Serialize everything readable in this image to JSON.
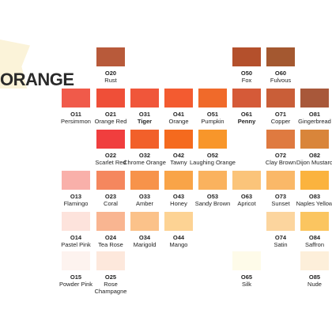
{
  "title": "ORANGE",
  "swatches": [
    {
      "code": "O20",
      "name": "Rust",
      "color": "#b85a3a",
      "col": 1,
      "row": 0
    },
    {
      "code": "O50",
      "name": "Fox",
      "color": "#b4502c",
      "col": 5,
      "row": 0
    },
    {
      "code": "O60",
      "name": "Fulvous",
      "color": "#a45830",
      "col": 6,
      "row": 0
    },
    {
      "code": "O11",
      "name": "Persimmon",
      "color": "#f05a4a",
      "col": 0,
      "row": 1
    },
    {
      "code": "O21",
      "name": "Orange Red",
      "color": "#ef4f38",
      "col": 1,
      "row": 1
    },
    {
      "code": "O31",
      "name": "Tiger",
      "color": "#f0563a",
      "col": 2,
      "row": 1,
      "bold": true
    },
    {
      "code": "O41",
      "name": "Orange",
      "color": "#f35b30",
      "col": 3,
      "row": 1
    },
    {
      "code": "O51",
      "name": "Pumpkin",
      "color": "#f06a2a",
      "col": 4,
      "row": 1
    },
    {
      "code": "O61",
      "name": "Penny",
      "color": "#d55a38",
      "col": 5,
      "row": 1,
      "bold": true
    },
    {
      "code": "O71",
      "name": "Copper",
      "color": "#c95e38",
      "col": 6,
      "row": 1
    },
    {
      "code": "O81",
      "name": "Gingerbread",
      "color": "#a8583a",
      "col": 7,
      "row": 1
    },
    {
      "code": "O22",
      "name": "Scarlet Red",
      "color": "#f03e3e",
      "col": 1,
      "row": 2
    },
    {
      "code": "O32",
      "name": "Chrome Orange",
      "color": "#f2602a",
      "col": 2,
      "row": 2
    },
    {
      "code": "O42",
      "name": "Tawny",
      "color": "#f56a1e",
      "col": 3,
      "row": 2
    },
    {
      "code": "O52",
      "name": "Laughing Orange",
      "color": "#f8962a",
      "col": 4,
      "row": 2
    },
    {
      "code": "O72",
      "name": "Clay Brown",
      "color": "#df7a40",
      "col": 6,
      "row": 2
    },
    {
      "code": "O82",
      "name": "Dijon Mustard",
      "color": "#d9853a",
      "col": 7,
      "row": 2
    },
    {
      "code": "O13",
      "name": "Flamingo",
      "color": "#f9b0aa",
      "col": 0,
      "row": 3
    },
    {
      "code": "O23",
      "name": "Coral",
      "color": "#f5875e",
      "col": 1,
      "row": 3
    },
    {
      "code": "O33",
      "name": "Amber",
      "color": "#f7934a",
      "col": 2,
      "row": 3
    },
    {
      "code": "O43",
      "name": "Honey",
      "color": "#f9a448",
      "col": 3,
      "row": 3
    },
    {
      "code": "O53",
      "name": "Sandy Brown",
      "color": "#fab25e",
      "col": 4,
      "row": 3
    },
    {
      "code": "O63",
      "name": "Apricot",
      "color": "#fbc47a",
      "col": 5,
      "row": 3
    },
    {
      "code": "O73",
      "name": "Sunset",
      "color": "#fab868",
      "col": 6,
      "row": 3
    },
    {
      "code": "O83",
      "name": "Naples Yellow",
      "color": "#fbb33e",
      "col": 7,
      "row": 3
    },
    {
      "code": "O14",
      "name": "Pastel Pink",
      "color": "#fde3dc",
      "col": 0,
      "row": 4
    },
    {
      "code": "O24",
      "name": "Tea Rose",
      "color": "#f9b591",
      "col": 1,
      "row": 4
    },
    {
      "code": "O34",
      "name": "Marigold",
      "color": "#fbc28a",
      "col": 2,
      "row": 4
    },
    {
      "code": "O44",
      "name": "Mango",
      "color": "#fdd394",
      "col": 3,
      "row": 4
    },
    {
      "code": "O74",
      "name": "Satin",
      "color": "#fcd59e",
      "col": 6,
      "row": 4
    },
    {
      "code": "O84",
      "name": "Saffron",
      "color": "#fbc560",
      "col": 7,
      "row": 4
    },
    {
      "code": "O15",
      "name": "Powder Pink",
      "color": "#fdf3ef",
      "col": 0,
      "row": 5
    },
    {
      "code": "O25",
      "name": "Rose Champagne",
      "color": "#fde8dc",
      "col": 1,
      "row": 5
    },
    {
      "code": "O65",
      "name": "Silk",
      "color": "#fefbe9",
      "col": 5,
      "row": 5
    },
    {
      "code": "O85",
      "name": "Nude",
      "color": "#fdefda",
      "col": 7,
      "row": 5
    }
  ]
}
